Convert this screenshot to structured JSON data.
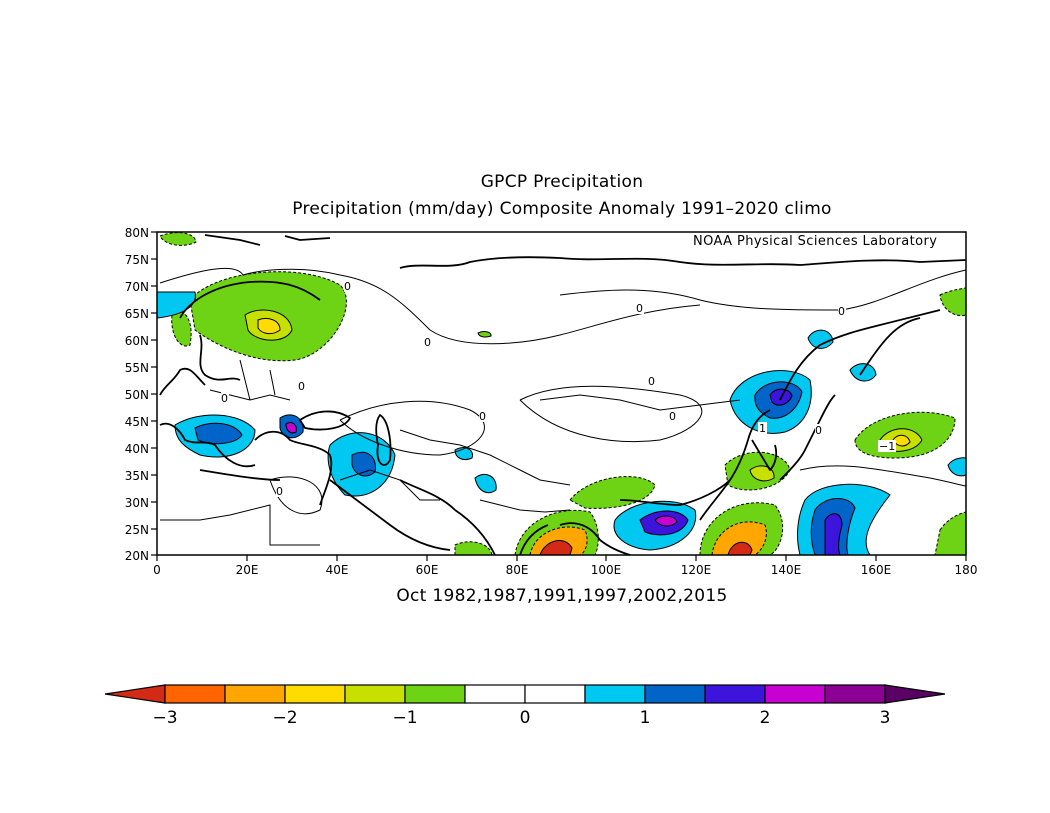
{
  "map": {
    "title": "GPCP Precipitation",
    "subtitle": "Precipitation (mm/day) Composite Anomaly 1991–2020 climo",
    "credit": "NOAA Physical Sciences Laboratory",
    "caption": "Oct 1982,1987,1991,1997,2002,2015",
    "region": "Eurasia",
    "lon_range": [
      0,
      180
    ],
    "lat_range": [
      20,
      80
    ],
    "lat_ticks": [
      "80N",
      "75N",
      "70N",
      "65N",
      "60N",
      "55N",
      "50N",
      "45N",
      "40N",
      "35N",
      "30N",
      "25N",
      "20N"
    ],
    "lon_ticks": [
      "0",
      "20E",
      "40E",
      "60E",
      "80E",
      "100E",
      "120E",
      "140E",
      "160E",
      "180"
    ],
    "contour_labels": [
      "0",
      "0",
      "0",
      "0",
      "0",
      "0",
      "0",
      "0",
      "0",
      "0",
      "0",
      "1",
      "−1"
    ]
  },
  "colorbar": {
    "tick_labels": [
      "−3",
      "−2",
      "−1",
      "0",
      "1",
      "2",
      "3"
    ],
    "colors": [
      "#d22a14",
      "#ff6400",
      "#ffa600",
      "#ffdc00",
      "#c8e000",
      "#6ed314",
      "#ffffff",
      "#ffffff",
      "#00c8f0",
      "#0064c8",
      "#3c14dc",
      "#c800d2",
      "#8c0096",
      "#5a0064"
    ],
    "under_color": "#d22a14",
    "over_color": "#5a0064"
  }
}
